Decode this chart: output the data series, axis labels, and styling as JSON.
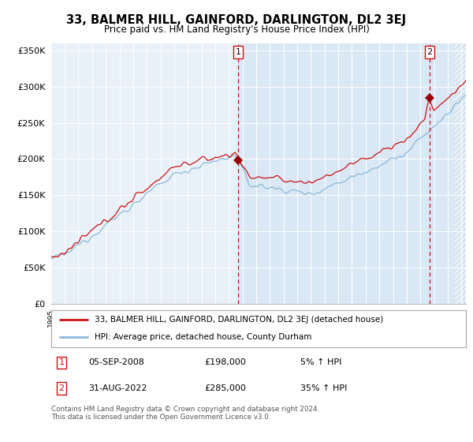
{
  "title": "33, BALMER HILL, GAINFORD, DARLINGTON, DL2 3EJ",
  "subtitle": "Price paid vs. HM Land Registry's House Price Index (HPI)",
  "background_color": "#e8f0f8",
  "hpi_color": "#88b8d8",
  "price_color": "#cc1111",
  "marker_color": "#990000",
  "vline_color": "#cc1111",
  "shade_color": "#d0e4f4",
  "ylim": [
    0,
    360000
  ],
  "yticks": [
    0,
    50000,
    100000,
    150000,
    200000,
    250000,
    300000,
    350000
  ],
  "sale1_date": 2008.67,
  "sale1_price": 198000,
  "sale2_date": 2022.67,
  "sale2_price": 285000,
  "legend_line1": "33, BALMER HILL, GAINFORD, DARLINGTON, DL2 3EJ (detached house)",
  "legend_line2": "HPI: Average price, detached house, County Durham",
  "note1_date": "05-SEP-2008",
  "note1_price": "£198,000",
  "note1_hpi": "5% ↑ HPI",
  "note2_date": "31-AUG-2022",
  "note2_price": "£285,000",
  "note2_hpi": "35% ↑ HPI",
  "footer": "Contains HM Land Registry data © Crown copyright and database right 2024.\nThis data is licensed under the Open Government Licence v3.0."
}
